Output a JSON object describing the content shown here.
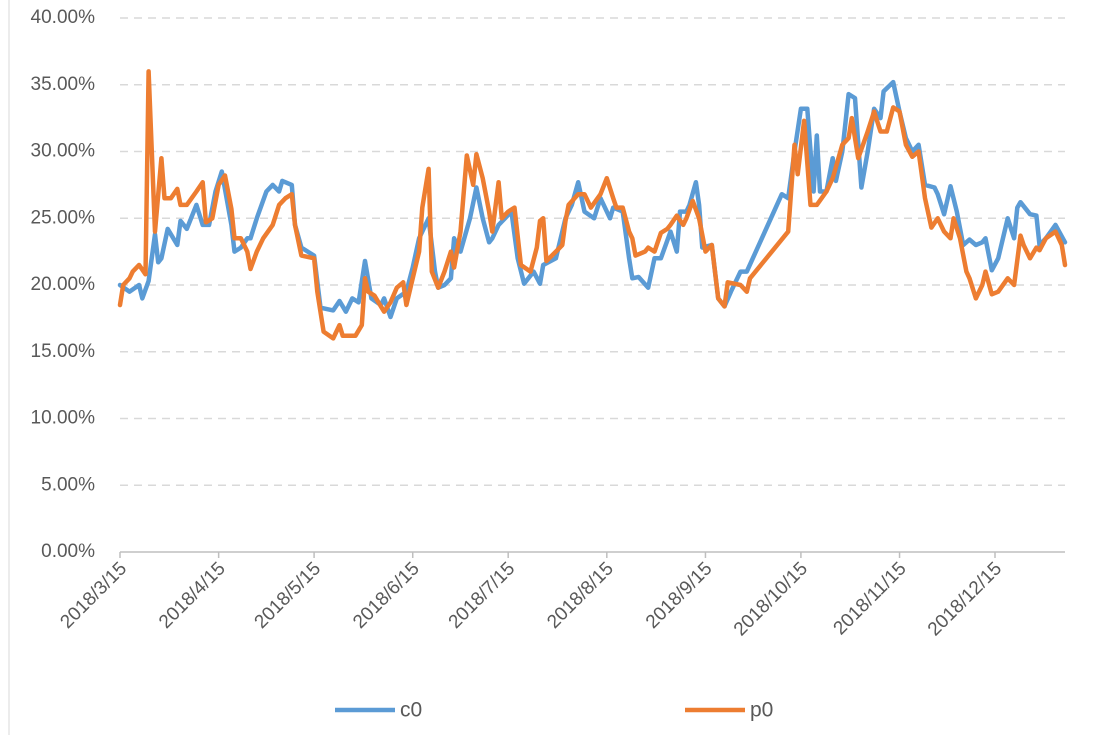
{
  "chart_data": {
    "type": "line",
    "xlim": [
      "2018/3/15",
      "2019/1/6"
    ],
    "xticks": [
      "2018/3/15",
      "2018/4/15",
      "2018/5/15",
      "2018/6/15",
      "2018/7/15",
      "2018/8/15",
      "2018/9/15",
      "2018/10/15",
      "2018/11/15",
      "2018/12/15"
    ],
    "ylim": [
      0,
      40
    ],
    "yticks": [
      {
        "value": 0,
        "label": "0.00%"
      },
      {
        "value": 5,
        "label": "5.00%"
      },
      {
        "value": 10,
        "label": "10.00%"
      },
      {
        "value": 15,
        "label": "15.00%"
      },
      {
        "value": 20,
        "label": "20.00%"
      },
      {
        "value": 25,
        "label": "25.00%"
      },
      {
        "value": 30,
        "label": "30.00%"
      },
      {
        "value": 35,
        "label": "35.00%"
      },
      {
        "value": 40,
        "label": "40.00%"
      }
    ],
    "grid": true,
    "legend": "bottom",
    "series": [
      {
        "name": "c0",
        "color": "#5b9bd5",
        "x": [
          "2018/3/15",
          "2018/3/18",
          "2018/3/21",
          "2018/3/22",
          "2018/3/24",
          "2018/3/26",
          "2018/3/27",
          "2018/3/28",
          "2018/3/30",
          "2018/4/2",
          "2018/4/3",
          "2018/4/5",
          "2018/4/8",
          "2018/4/10",
          "2018/4/12",
          "2018/4/14",
          "2018/4/16",
          "2018/4/19",
          "2018/4/20",
          "2018/4/22",
          "2018/4/24",
          "2018/4/25",
          "2018/4/27",
          "2018/4/30",
          "2018/5/2",
          "2018/5/4",
          "2018/5/5",
          "2018/5/8",
          "2018/5/9",
          "2018/5/11",
          "2018/5/15",
          "2018/5/17",
          "2018/5/21",
          "2018/5/23",
          "2018/5/25",
          "2018/5/27",
          "2018/5/29",
          "2018/5/31",
          "2018/6/2",
          "2018/6/5",
          "2018/6/6",
          "2018/6/8",
          "2018/6/10",
          "2018/6/13",
          "2018/6/15",
          "2018/6/17",
          "2018/6/20",
          "2018/6/22",
          "2018/6/23",
          "2018/6/25",
          "2018/6/27",
          "2018/6/28",
          "2018/6/30",
          "2018/7/3",
          "2018/7/5",
          "2018/7/7",
          "2018/7/9",
          "2018/7/10",
          "2018/7/12",
          "2018/7/14",
          "2018/7/16",
          "2018/7/18",
          "2018/7/20",
          "2018/7/23",
          "2018/7/25",
          "2018/7/26",
          "2018/7/30",
          "2018/8/2",
          "2018/8/4",
          "2018/8/6",
          "2018/8/8",
          "2018/8/11",
          "2018/8/13",
          "2018/8/16",
          "2018/8/17",
          "2018/8/20",
          "2018/8/22",
          "2018/8/23",
          "2018/8/25",
          "2018/8/28",
          "2018/8/30",
          "2018/9/1",
          "2018/9/4",
          "2018/9/6",
          "2018/9/7",
          "2018/9/9",
          "2018/9/10",
          "2018/9/12",
          "2018/9/13",
          "2018/9/14",
          "2018/9/17",
          "2018/9/19",
          "2018/9/21",
          "2018/9/23",
          "2018/9/26",
          "2018/9/28",
          "2018/10/9",
          "2018/10/11",
          "2018/10/13",
          "2018/10/15",
          "2018/10/17",
          "2018/10/19",
          "2018/10/20",
          "2018/10/21",
          "2018/10/23",
          "2018/10/25",
          "2018/10/26",
          "2018/10/28",
          "2018/10/30",
          "2018/11/1",
          "2018/11/3",
          "2018/11/5",
          "2018/11/7",
          "2018/11/9",
          "2018/11/10",
          "2018/11/13",
          "2018/11/15",
          "2018/11/17",
          "2018/11/19",
          "2018/11/21",
          "2018/11/23",
          "2018/11/26",
          "2018/11/27",
          "2018/11/29",
          "2018/12/1",
          "2018/12/3",
          "2018/12/5",
          "2018/12/7",
          "2018/12/9",
          "2018/12/11",
          "2018/12/12",
          "2018/12/14",
          "2018/12/16",
          "2018/12/19",
          "2018/12/21",
          "2018/12/22",
          "2018/12/23",
          "2018/12/26",
          "2018/12/28",
          "2018/12/29",
          "2018/12/31",
          "2019/1/3",
          "2019/1/6"
        ],
        "values": [
          20.0,
          19.5,
          20.0,
          19.0,
          20.3,
          23.8,
          21.7,
          22.0,
          24.2,
          23.0,
          24.8,
          24.2,
          26.0,
          24.5,
          24.5,
          27.0,
          28.5,
          24.5,
          22.5,
          22.8,
          23.5,
          23.5,
          25.0,
          27.0,
          27.5,
          27.0,
          27.8,
          27.5,
          24.5,
          22.8,
          22.2,
          18.3,
          18.1,
          18.8,
          18.0,
          19.0,
          18.7,
          21.8,
          19.0,
          18.5,
          19.0,
          17.6,
          19.0,
          19.5,
          21.3,
          23.5,
          25.0,
          21.0,
          19.8,
          20.0,
          20.5,
          23.5,
          22.5,
          25.0,
          27.3,
          25.0,
          23.2,
          23.5,
          24.5,
          25.0,
          25.5,
          22.0,
          20.1,
          21.0,
          20.1,
          21.5,
          22.0,
          25.0,
          26.0,
          27.7,
          25.5,
          25.0,
          26.5,
          25.0,
          25.8,
          25.5,
          22.0,
          20.5,
          20.6,
          19.8,
          22.0,
          22.0,
          24.0,
          22.5,
          25.5,
          25.5,
          26.0,
          27.7,
          26.0,
          22.8,
          23.0,
          19.0,
          18.4,
          19.5,
          21.0,
          21.0,
          26.8,
          26.5,
          30.0,
          33.2,
          33.2,
          27.0,
          31.2,
          27.0,
          27.0,
          29.5,
          27.8,
          30.0,
          34.3,
          34.0,
          27.3,
          30.0,
          33.2,
          32.5,
          34.5,
          35.2,
          33.0,
          31.0,
          30.0,
          30.5,
          27.5,
          27.3,
          26.8,
          25.3,
          27.4,
          25.5,
          23.0,
          23.4,
          23.0,
          23.2,
          23.5,
          21.1,
          22.0,
          25.0,
          23.5,
          25.8,
          26.2,
          25.3,
          25.2,
          23.0,
          23.5,
          24.5,
          23.2
        ]
      },
      {
        "name": "p0",
        "color": "#ed7d31",
        "x": [
          "2018/3/15",
          "2018/3/16",
          "2018/3/18",
          "2018/3/19",
          "2018/3/21",
          "2018/3/23",
          "2018/3/24",
          "2018/3/25",
          "2018/3/26",
          "2018/3/28",
          "2018/3/29",
          "2018/3/31",
          "2018/4/2",
          "2018/4/3",
          "2018/4/5",
          "2018/4/8",
          "2018/4/10",
          "2018/4/11",
          "2018/4/13",
          "2018/4/15",
          "2018/4/17",
          "2018/4/19",
          "2018/4/20",
          "2018/4/22",
          "2018/4/24",
          "2018/4/25",
          "2018/4/27",
          "2018/4/29",
          "2018/5/2",
          "2018/5/4",
          "2018/5/6",
          "2018/5/8",
          "2018/5/9",
          "2018/5/11",
          "2018/5/15",
          "2018/5/16",
          "2018/5/18",
          "2018/5/21",
          "2018/5/23",
          "2018/5/24",
          "2018/5/28",
          "2018/5/30",
          "2018/5/31",
          "2018/6/1",
          "2018/6/3",
          "2018/6/6",
          "2018/6/8",
          "2018/6/10",
          "2018/6/12",
          "2018/6/13",
          "2018/6/15",
          "2018/6/17",
          "2018/6/18",
          "2018/6/20",
          "2018/6/21",
          "2018/6/23",
          "2018/6/25",
          "2018/6/27",
          "2018/6/28",
          "2018/6/30",
          "2018/7/2",
          "2018/7/4",
          "2018/7/5",
          "2018/7/7",
          "2018/7/9",
          "2018/7/10",
          "2018/7/12",
          "2018/7/13",
          "2018/7/15",
          "2018/7/17",
          "2018/7/19",
          "2018/7/22",
          "2018/7/24",
          "2018/7/25",
          "2018/7/26",
          "2018/7/27",
          "2018/7/30",
          "2018/8/1",
          "2018/8/2",
          "2018/8/3",
          "2018/8/6",
          "2018/8/8",
          "2018/8/10",
          "2018/8/13",
          "2018/8/15",
          "2018/8/17",
          "2018/8/18",
          "2018/8/20",
          "2018/8/22",
          "2018/8/23",
          "2018/8/24",
          "2018/8/27",
          "2018/8/28",
          "2018/8/30",
          "2018/9/1",
          "2018/9/3",
          "2018/9/4",
          "2018/9/6",
          "2018/9/8",
          "2018/9/9",
          "2018/9/11",
          "2018/9/13",
          "2018/9/15",
          "2018/9/17",
          "2018/9/19",
          "2018/9/21",
          "2018/9/22",
          "2018/9/26",
          "2018/9/28",
          "2018/9/29",
          "2018/10/11",
          "2018/10/13",
          "2018/10/14",
          "2018/10/16",
          "2018/10/18",
          "2018/10/20",
          "2018/10/23",
          "2018/10/25",
          "2018/10/28",
          "2018/10/30",
          "2018/10/31",
          "2018/11/2",
          "2018/11/5",
          "2018/11/7",
          "2018/11/9",
          "2018/11/11",
          "2018/11/13",
          "2018/11/15",
          "2018/11/17",
          "2018/11/19",
          "2018/11/21",
          "2018/11/23",
          "2018/11/25",
          "2018/11/27",
          "2018/11/29",
          "2018/12/1",
          "2018/12/2",
          "2018/12/4",
          "2018/12/6",
          "2018/12/7",
          "2018/12/9",
          "2018/12/11",
          "2018/12/12",
          "2018/12/14",
          "2018/12/16",
          "2018/12/19",
          "2018/12/21",
          "2018/12/23",
          "2018/12/24",
          "2018/12/26",
          "2018/12/28",
          "2018/12/29",
          "2018/12/31",
          "2019/1/3",
          "2019/1/5",
          "2019/1/6"
        ],
        "values": [
          18.5,
          20.0,
          20.5,
          21.0,
          21.5,
          20.8,
          36.0,
          30.0,
          24.0,
          29.5,
          26.5,
          26.5,
          27.2,
          26.0,
          26.0,
          27.0,
          27.7,
          24.7,
          25.0,
          27.5,
          28.2,
          25.7,
          23.5,
          23.5,
          22.5,
          21.2,
          22.5,
          23.5,
          24.5,
          26.0,
          26.5,
          26.8,
          24.5,
          22.2,
          22.0,
          19.5,
          16.5,
          16.0,
          17.0,
          16.2,
          16.2,
          17.0,
          20.5,
          19.5,
          19.2,
          18.0,
          18.7,
          19.8,
          20.2,
          18.5,
          20.5,
          22.5,
          25.8,
          28.7,
          21.0,
          19.8,
          21.0,
          22.5,
          21.3,
          24.0,
          29.7,
          27.5,
          29.8,
          28.0,
          25.5,
          24.0,
          27.7,
          25.0,
          25.5,
          25.8,
          21.5,
          21.0,
          22.8,
          24.8,
          25.0,
          21.8,
          22.5,
          23.0,
          24.8,
          26.0,
          26.8,
          26.8,
          25.8,
          26.8,
          28.0,
          26.5,
          25.8,
          25.8,
          24.0,
          23.5,
          22.2,
          22.5,
          22.8,
          22.5,
          23.9,
          24.2,
          24.5,
          25.2,
          24.5,
          25.0,
          26.3,
          25.0,
          22.5,
          23.0,
          19.0,
          18.4,
          20.2,
          20.0,
          19.5,
          20.5,
          24.0,
          30.5,
          28.3,
          32.3,
          26.0,
          26.0,
          27.0,
          28.0,
          30.5,
          31.0,
          32.5,
          29.5,
          31.5,
          33.0,
          31.5,
          31.5,
          33.3,
          33.0,
          30.5,
          29.6,
          30.0,
          26.5,
          24.3,
          25.0,
          24.0,
          23.5,
          25.0,
          23.5,
          21.0,
          20.5,
          19.0,
          20.0,
          21.0,
          19.3,
          19.5,
          20.5,
          20.0,
          23.7,
          23.0,
          22.0,
          22.8,
          22.6,
          23.5,
          24.0,
          23.0,
          21.5
        ]
      }
    ]
  }
}
